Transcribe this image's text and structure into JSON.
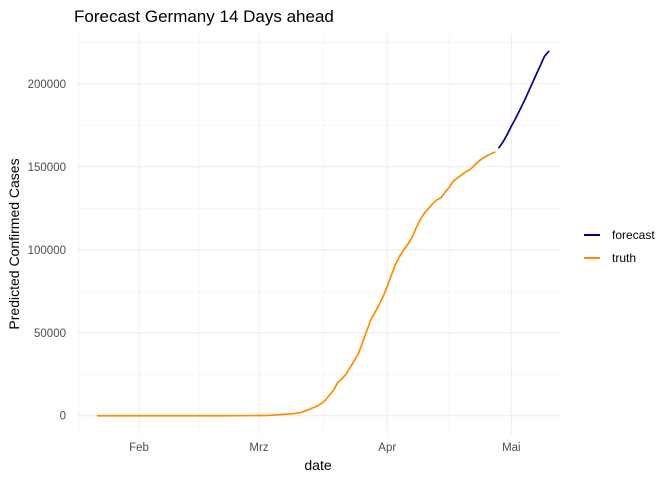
{
  "chart_data": {
    "type": "line",
    "title": "Forecast Germany 14 Days ahead",
    "xlabel": "date",
    "ylabel": "Predicted Confirmed Cases",
    "x_ticks": [
      {
        "label": "Feb",
        "date": "2020-02-01"
      },
      {
        "label": "Mrz",
        "date": "2020-03-01"
      },
      {
        "label": "Apr",
        "date": "2020-04-01"
      },
      {
        "label": "Mai",
        "date": "2020-05-01"
      }
    ],
    "y_ticks": [
      0,
      50000,
      100000,
      150000,
      200000
    ],
    "xlim": [
      "2020-01-17",
      "2020-05-13"
    ],
    "ylim": [
      -11000,
      230000
    ],
    "grid": true,
    "legend_position": "right",
    "series": [
      {
        "name": "forecast",
        "color": "#00008B",
        "points": [
          [
            "2020-04-28",
            161500
          ],
          [
            "2020-04-29",
            165000
          ],
          [
            "2020-04-30",
            169500
          ],
          [
            "2020-05-01",
            174500
          ],
          [
            "2020-05-02",
            179000
          ],
          [
            "2020-05-03",
            184000
          ],
          [
            "2020-05-04",
            189000
          ],
          [
            "2020-05-05",
            194500
          ],
          [
            "2020-05-06",
            200000
          ],
          [
            "2020-05-07",
            205500
          ],
          [
            "2020-05-08",
            211000
          ],
          [
            "2020-05-09",
            216500
          ],
          [
            "2020-05-10",
            219500
          ]
        ]
      },
      {
        "name": "truth",
        "color": "#FF8C00",
        "points": [
          [
            "2020-01-22",
            0
          ],
          [
            "2020-01-27",
            1
          ],
          [
            "2020-02-01",
            8
          ],
          [
            "2020-02-10",
            14
          ],
          [
            "2020-02-20",
            16
          ],
          [
            "2020-02-25",
            18
          ],
          [
            "2020-03-01",
            130
          ],
          [
            "2020-03-03",
            196
          ],
          [
            "2020-03-05",
            482
          ],
          [
            "2020-03-07",
            800
          ],
          [
            "2020-03-09",
            1176
          ],
          [
            "2020-03-11",
            1908
          ],
          [
            "2020-03-13",
            3675
          ],
          [
            "2020-03-15",
            5795
          ],
          [
            "2020-03-16",
            7272
          ],
          [
            "2020-03-17",
            9257
          ],
          [
            "2020-03-18",
            12327
          ],
          [
            "2020-03-19",
            15320
          ],
          [
            "2020-03-20",
            19848
          ],
          [
            "2020-03-21",
            22213
          ],
          [
            "2020-03-22",
            24873
          ],
          [
            "2020-03-23",
            29056
          ],
          [
            "2020-03-24",
            32986
          ],
          [
            "2020-03-25",
            37323
          ],
          [
            "2020-03-26",
            43938
          ],
          [
            "2020-03-27",
            50871
          ],
          [
            "2020-03-28",
            57695
          ],
          [
            "2020-03-29",
            62095
          ],
          [
            "2020-03-30",
            66885
          ],
          [
            "2020-03-31",
            71808
          ],
          [
            "2020-04-01",
            77872
          ],
          [
            "2020-04-02",
            84794
          ],
          [
            "2020-04-03",
            91159
          ],
          [
            "2020-04-04",
            96092
          ],
          [
            "2020-04-05",
            100123
          ],
          [
            "2020-04-06",
            103374
          ],
          [
            "2020-04-07",
            107663
          ],
          [
            "2020-04-08",
            113296
          ],
          [
            "2020-04-09",
            118181
          ],
          [
            "2020-04-10",
            122171
          ],
          [
            "2020-04-11",
            124908
          ],
          [
            "2020-04-12",
            127854
          ],
          [
            "2020-04-13",
            130072
          ],
          [
            "2020-04-14",
            131359
          ],
          [
            "2020-04-15",
            134753
          ],
          [
            "2020-04-16",
            137698
          ],
          [
            "2020-04-17",
            141397
          ],
          [
            "2020-04-18",
            143342
          ],
          [
            "2020-04-19",
            145184
          ],
          [
            "2020-04-20",
            147065
          ],
          [
            "2020-04-21",
            148291
          ],
          [
            "2020-04-22",
            150648
          ],
          [
            "2020-04-23",
            153129
          ],
          [
            "2020-04-24",
            154999
          ],
          [
            "2020-04-25",
            156513
          ],
          [
            "2020-04-26",
            157770
          ],
          [
            "2020-04-27",
            158758
          ]
        ]
      }
    ]
  }
}
